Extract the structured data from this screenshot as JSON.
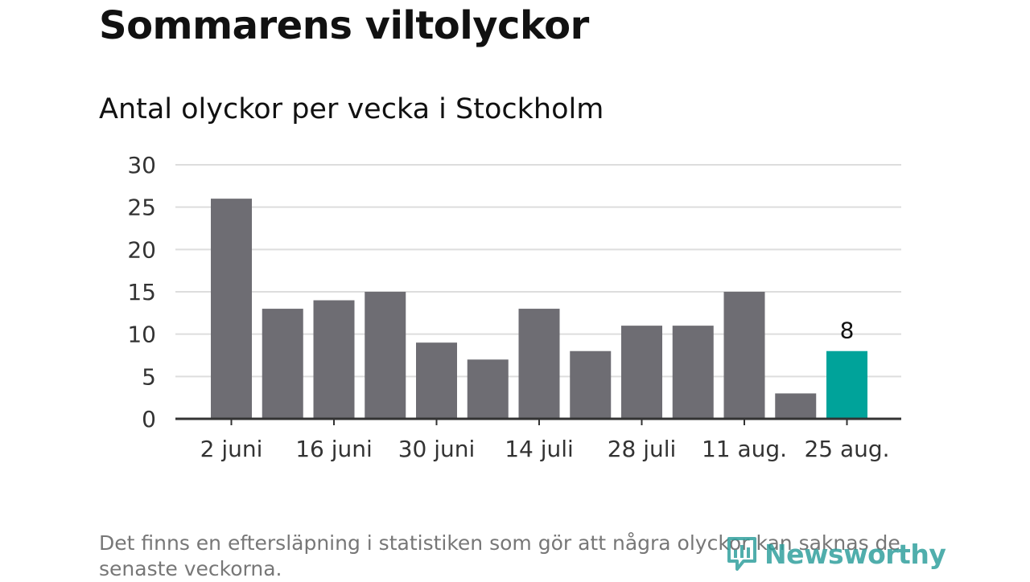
{
  "header": {
    "title": "Sommarens viltolyckor",
    "subtitle": "Antal olyckor per vecka i Stockholm"
  },
  "chart_data": {
    "type": "bar",
    "ylim": [
      0,
      30
    ],
    "yticks": [
      "0",
      "5",
      "10",
      "15",
      "20",
      "25",
      "30"
    ],
    "xtick_labels": [
      "2 juni",
      "16 juni",
      "30 juni",
      "14 juli",
      "28 juli",
      "11 aug.",
      "25 aug."
    ],
    "values": [
      26,
      13,
      14,
      15,
      9,
      7,
      13,
      8,
      11,
      11,
      15,
      3,
      8
    ],
    "highlight_index": 12,
    "highlight_label": "8",
    "colors": {
      "bar": "#6e6d73",
      "highlight": "#00a39a",
      "grid": "#dddddd",
      "axis": "#333333"
    },
    "grid": true
  },
  "footer": {
    "note": "Det finns en eftersläpning i statistiken som gör att några olyckor kan saknas de senaste veckorna.",
    "brand": "Newsworthy",
    "brand_icon": "newsworthy-logo-icon"
  }
}
